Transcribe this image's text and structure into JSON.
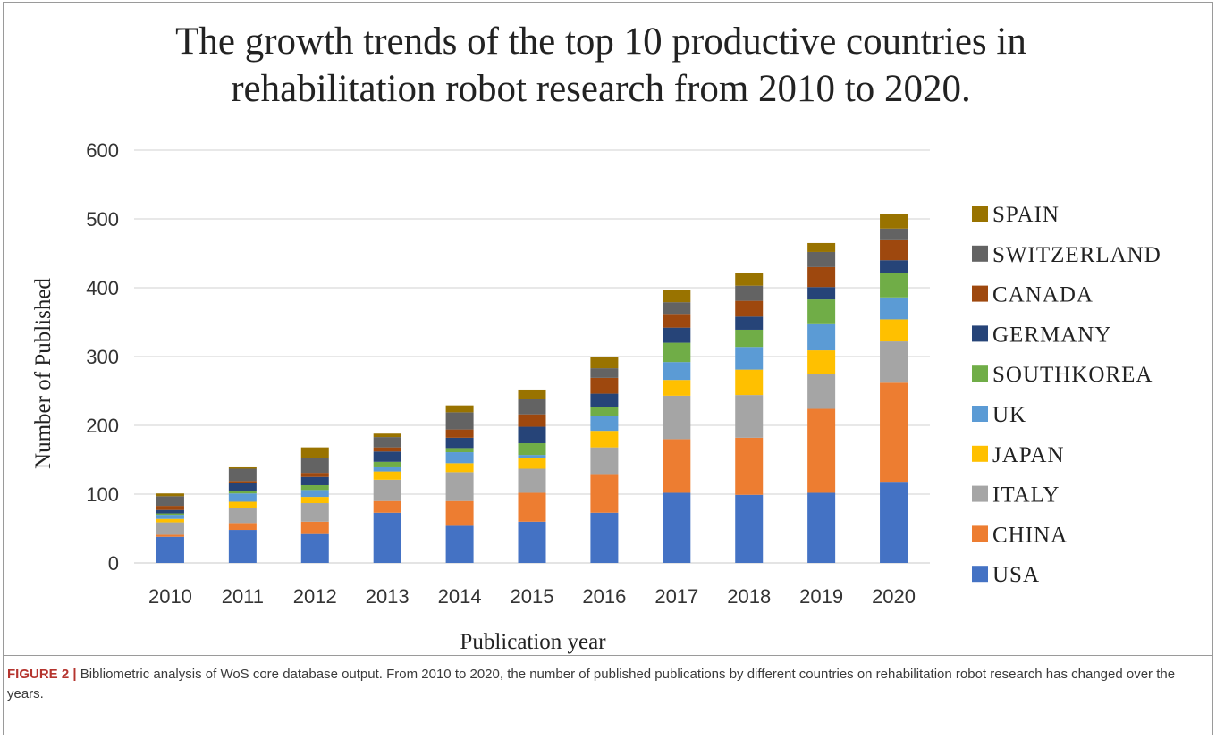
{
  "caption": {
    "label": "FIGURE 2 |",
    "text": "Bibliometric analysis of WoS core database output. From 2010 to 2020, the number of published publications by different countries on rehabilitation robot research has changed over the years."
  },
  "chart_data": {
    "type": "bar",
    "stacked": true,
    "title_line1": "The growth trends of the top 10 productive countries in",
    "title_line2": "rehabilitation robot research from 2010 to 2020.",
    "xlabel": "Publication year",
    "ylabel": "Number of Published",
    "ylim": [
      0,
      600
    ],
    "yticks": [
      "0",
      "100",
      "200",
      "300",
      "400",
      "500",
      "600"
    ],
    "grid": true,
    "legend_position": "right",
    "categories": [
      "2010",
      "2011",
      "2012",
      "2013",
      "2014",
      "2015",
      "2016",
      "2017",
      "2018",
      "2019",
      "2020"
    ],
    "series": [
      {
        "name": "USA",
        "color": "#4472C4",
        "values": [
          38,
          48,
          42,
          73,
          54,
          60,
          73,
          102,
          99,
          102,
          118
        ]
      },
      {
        "name": "CHINA",
        "color": "#ED7D31",
        "values": [
          3,
          10,
          18,
          17,
          36,
          42,
          55,
          78,
          83,
          122,
          144
        ]
      },
      {
        "name": "ITALY",
        "color": "#A5A5A5",
        "values": [
          18,
          22,
          27,
          31,
          42,
          35,
          40,
          63,
          62,
          51,
          60
        ]
      },
      {
        "name": "JAPAN",
        "color": "#FFC000",
        "values": [
          5,
          9,
          9,
          12,
          13,
          15,
          24,
          23,
          37,
          34,
          32
        ]
      },
      {
        "name": "UK",
        "color": "#5B9BD5",
        "values": [
          6,
          12,
          10,
          6,
          16,
          5,
          21,
          26,
          33,
          38,
          32
        ]
      },
      {
        "name": "SOUTHKOREA",
        "color": "#70AD47",
        "values": [
          2,
          3,
          7,
          8,
          6,
          17,
          14,
          28,
          25,
          36,
          36
        ]
      },
      {
        "name": "GERMANY",
        "color": "#264478",
        "values": [
          5,
          12,
          12,
          15,
          15,
          24,
          19,
          22,
          19,
          18,
          18
        ]
      },
      {
        "name": "CANADA",
        "color": "#9E480E",
        "values": [
          6,
          3,
          6,
          6,
          12,
          18,
          23,
          20,
          23,
          29,
          29
        ]
      },
      {
        "name": "SWITZERLAND",
        "color": "#636363",
        "values": [
          14,
          18,
          22,
          15,
          25,
          22,
          14,
          17,
          22,
          22,
          17
        ]
      },
      {
        "name": "SPAIN",
        "color": "#997300",
        "values": [
          4,
          2,
          15,
          5,
          10,
          14,
          17,
          18,
          19,
          13,
          21
        ]
      }
    ]
  }
}
